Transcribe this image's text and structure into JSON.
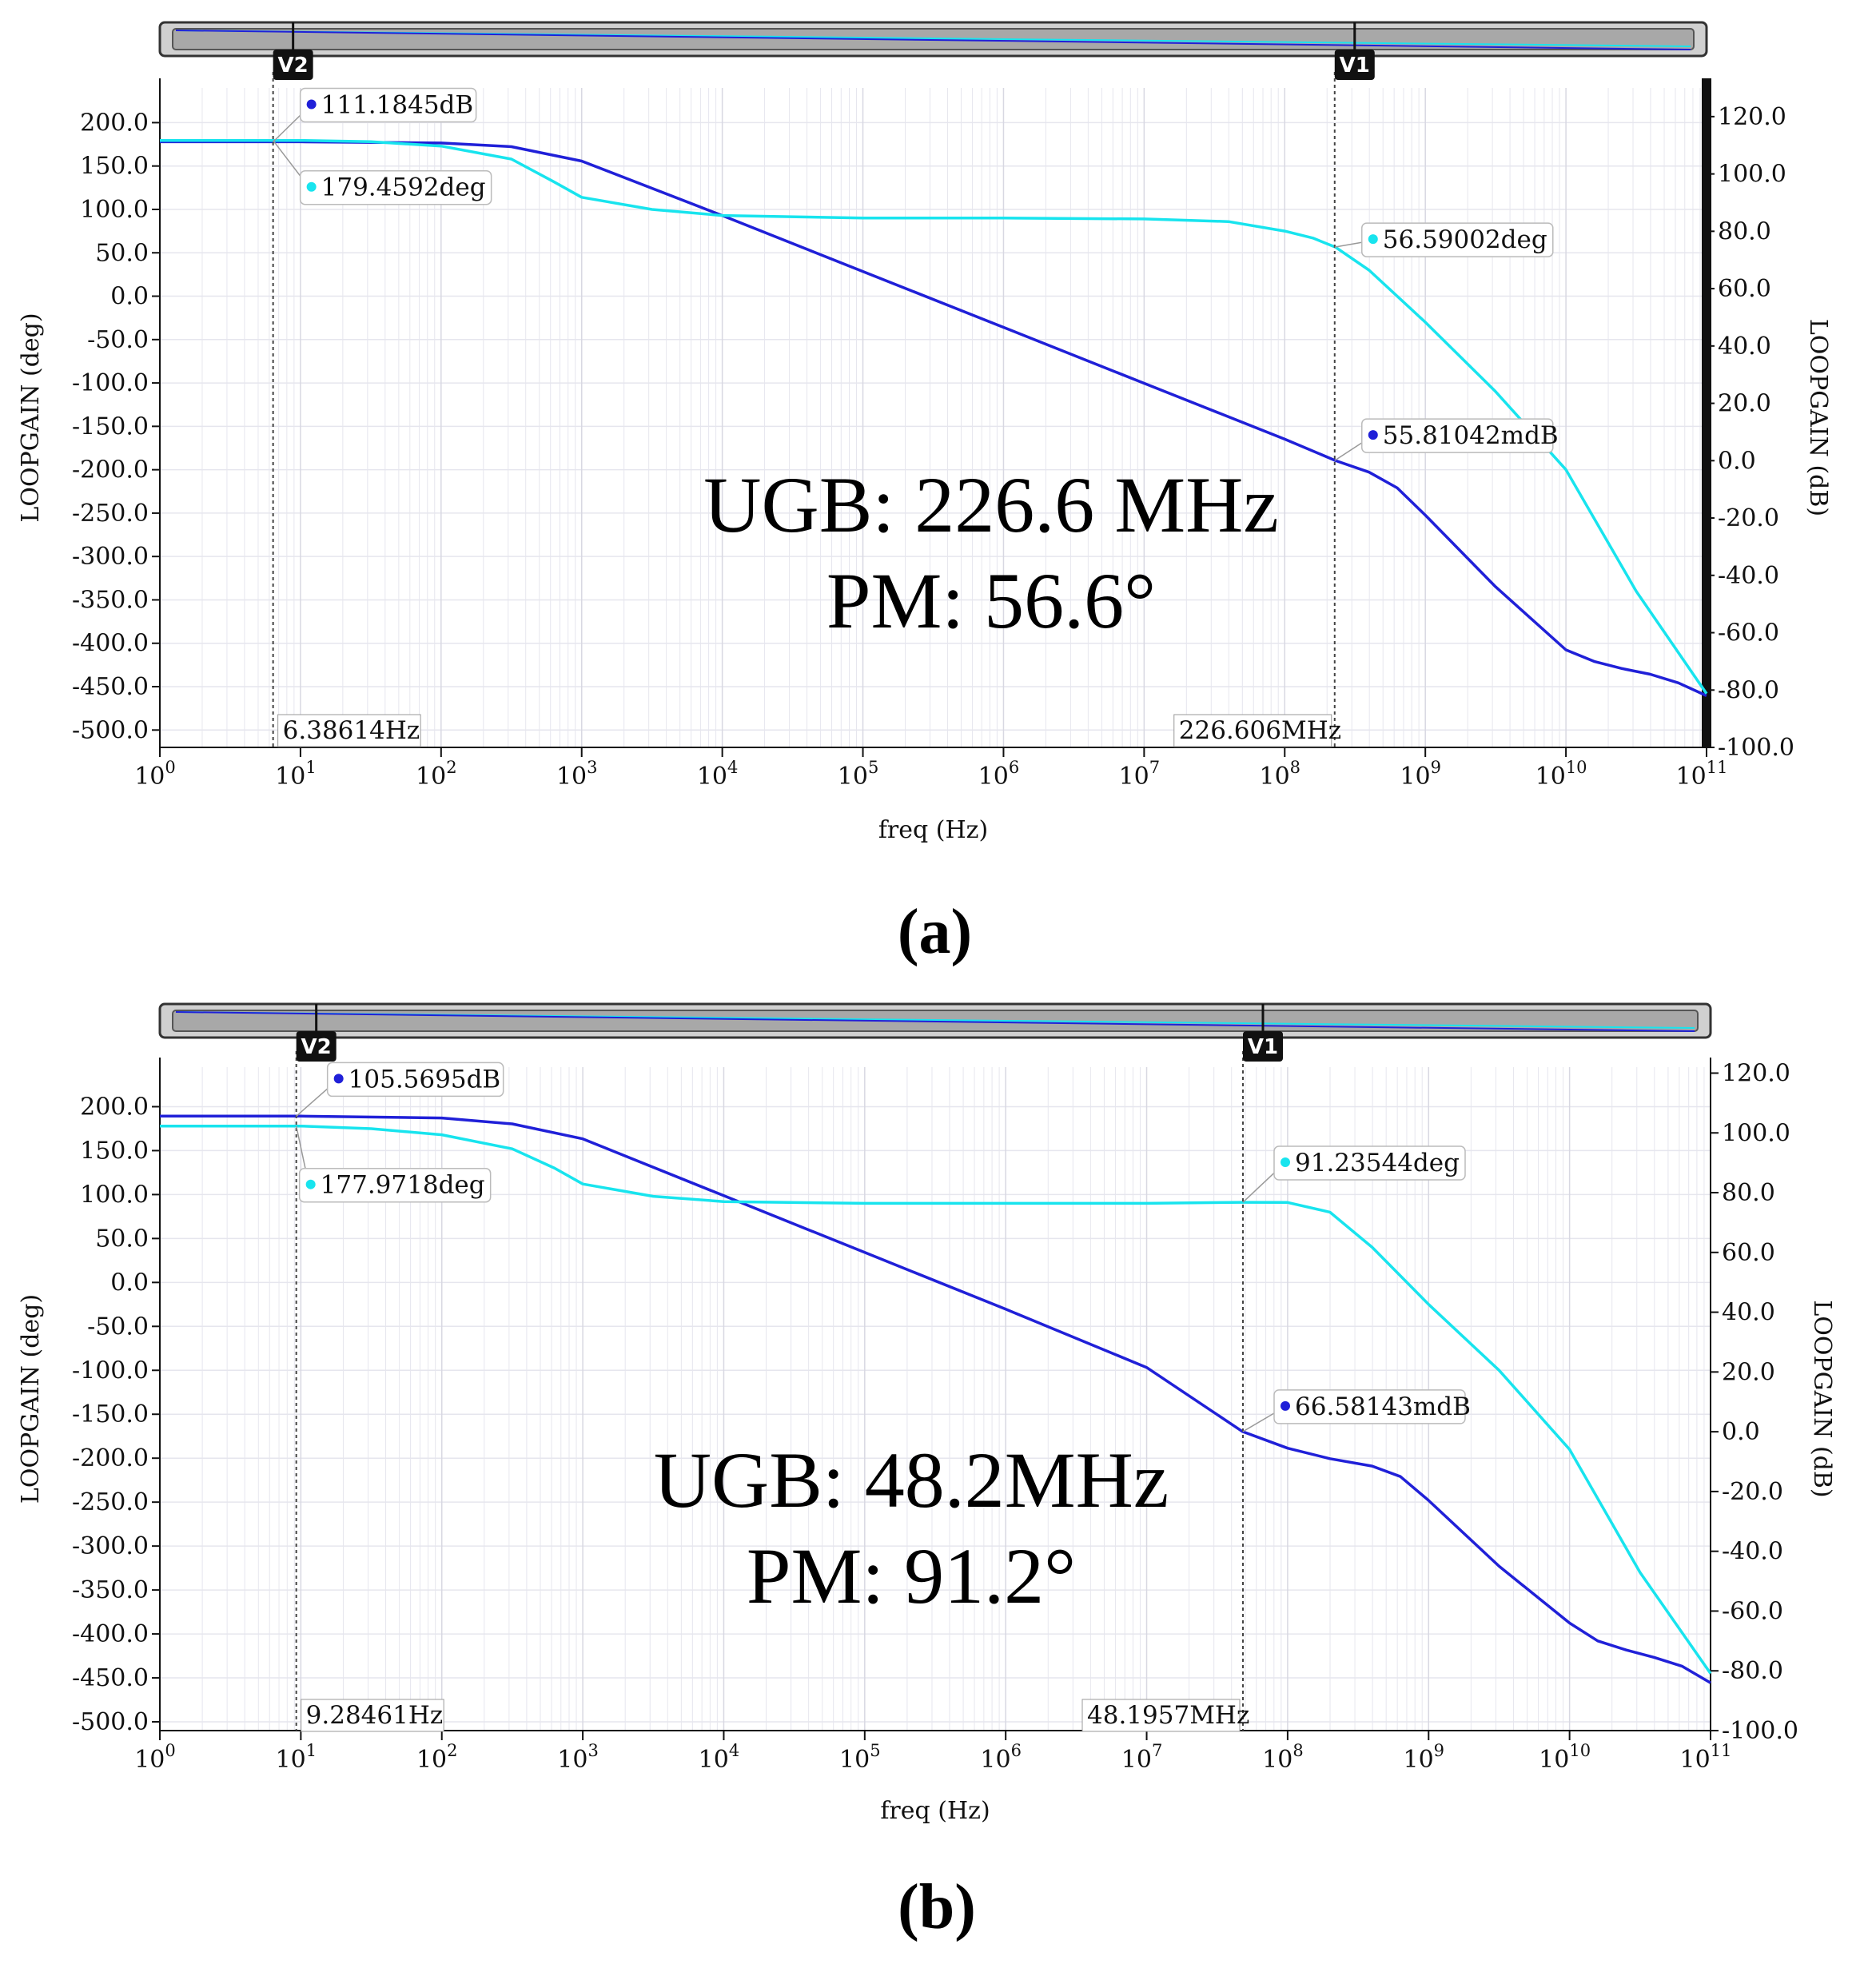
{
  "colors": {
    "gain": "#2020d8",
    "phase": "#18e4ee",
    "grid": "#e6e6ee",
    "axis": "#111111"
  },
  "chart_data": [
    {
      "type": "line",
      "panel_label": "(a)",
      "xlabel": "freq (Hz)",
      "ylabel_left": "LOOPGAIN (deg)",
      "ylabel_right": "LOOPGAIN (dB)",
      "xscale": "log",
      "xlim_exp": [
        0,
        11
      ],
      "x_tick_labels": [
        "10",
        "10",
        "10",
        "10",
        "10",
        "10",
        "10",
        "10",
        "10",
        "10",
        "10",
        "10"
      ],
      "x_tick_exps": [
        "0",
        "1",
        "2",
        "3",
        "4",
        "5",
        "6",
        "7",
        "8",
        "9",
        "10",
        "11"
      ],
      "ylim_left": [
        -520,
        240
      ],
      "y_left_ticks": [
        "200.0",
        "150.0",
        "100.0",
        "50.0",
        "0.0",
        "-50.0",
        "-100.0",
        "-150.0",
        "-200.0",
        "-250.0",
        "-300.0",
        "-350.0",
        "-400.0",
        "-450.0",
        "-500.0"
      ],
      "ylim_right": [
        -100,
        130
      ],
      "y_right_ticks": [
        "120.0",
        "100.0",
        "80.0",
        "60.0",
        "40.0",
        "20.0",
        "0.0",
        "-20.0",
        "-40.0",
        "-60.0",
        "-80.0",
        "-100.0"
      ],
      "series": [
        {
          "name": "LOOPGAIN (dB)",
          "axis": "right",
          "x_exp": [
            0,
            1,
            2,
            2.5,
            3,
            4,
            5,
            6,
            7,
            8,
            8.36,
            8.6,
            8.8,
            9,
            9.5,
            10,
            10.2,
            10.4,
            10.6,
            10.8,
            11
          ],
          "values": [
            111.2,
            111.2,
            110.8,
            109.5,
            104.5,
            85.5,
            66,
            46.5,
            27,
            7.5,
            0.06,
            -4,
            -9.5,
            -19,
            -44,
            -66,
            -70,
            -72.5,
            -74.5,
            -77.5,
            -82
          ]
        },
        {
          "name": "LOOPGAIN (deg)",
          "axis": "left",
          "x_exp": [
            0,
            1,
            1.5,
            2,
            2.5,
            2.8,
            3,
            3.5,
            4,
            5,
            6,
            7,
            7.6,
            8,
            8.2,
            8.36,
            8.6,
            9,
            9.5,
            10,
            10.5,
            11
          ],
          "values": [
            179.5,
            179.5,
            178,
            173,
            158,
            132,
            114,
            100,
            93,
            90,
            90,
            89,
            86,
            75,
            67,
            56.6,
            30,
            -30,
            -110,
            -200,
            -340,
            -458
          ]
        }
      ],
      "cursors": [
        {
          "name": "V2",
          "freq_label": "6.38614Hz",
          "x_exp": 0.8052
        },
        {
          "name": "V1",
          "freq_label": "226.606MHz",
          "x_exp": 8.3553
        }
      ],
      "markers": [
        {
          "label": "111.1845dB",
          "series": "gain",
          "x_exp": 0.8052,
          "value": 111.18
        },
        {
          "label": "179.4592deg",
          "series": "phase",
          "x_exp": 0.8052,
          "value": 179.46
        },
        {
          "label": "56.59002deg",
          "series": "phase",
          "x_exp": 8.3553,
          "value": 56.59
        },
        {
          "label": "55.81042mdB",
          "series": "gain",
          "x_exp": 8.3553,
          "value": 0.056
        }
      ],
      "annotation": [
        "UGB: 226.6 MHz",
        "PM: 56.6°"
      ]
    },
    {
      "type": "line",
      "panel_label": "(b)",
      "xlabel": "freq (Hz)",
      "ylabel_left": "LOOPGAIN (deg)",
      "ylabel_right": "LOOPGAIN (dB)",
      "xscale": "log",
      "xlim_exp": [
        0,
        11
      ],
      "x_tick_labels": [
        "10",
        "10",
        "10",
        "10",
        "10",
        "10",
        "10",
        "10",
        "10",
        "10",
        "10",
        "10"
      ],
      "x_tick_exps": [
        "0",
        "1",
        "2",
        "3",
        "4",
        "5",
        "6",
        "7",
        "8",
        "9",
        "10",
        "11"
      ],
      "ylim_left": [
        -510,
        245
      ],
      "y_left_ticks": [
        "200.0",
        "150.0",
        "100.0",
        "50.0",
        "0.0",
        "-50.0",
        "-100.0",
        "-150.0",
        "-200.0",
        "-250.0",
        "-300.0",
        "-350.0",
        "-400.0",
        "-450.0",
        "-500.0"
      ],
      "ylim_right": [
        -100,
        122
      ],
      "y_right_ticks": [
        "120.0",
        "100.0",
        "80.0",
        "60.0",
        "40.0",
        "20.0",
        "0.0",
        "-20.0",
        "-40.0",
        "-60.0",
        "-80.0",
        "-100.0"
      ],
      "series": [
        {
          "name": "LOOPGAIN (dB)",
          "axis": "right",
          "x_exp": [
            0,
            1,
            2,
            2.5,
            3,
            4,
            5,
            6,
            7,
            7.68,
            8,
            8.3,
            8.6,
            8.8,
            9,
            9.5,
            10,
            10.2,
            10.4,
            10.6,
            10.8,
            11
          ],
          "values": [
            105.6,
            105.6,
            105,
            103,
            98,
            79,
            60,
            41,
            21.5,
            0.07,
            -5.5,
            -9,
            -11.5,
            -15,
            -23,
            -45,
            -64,
            -70,
            -73,
            -75.5,
            -78.5,
            -84
          ]
        },
        {
          "name": "LOOPGAIN (deg)",
          "axis": "left",
          "x_exp": [
            0,
            1,
            1.5,
            2,
            2.5,
            2.8,
            3,
            3.5,
            4,
            5,
            6,
            7,
            7.68,
            8,
            8.3,
            8.6,
            9,
            9.5,
            10,
            10.5,
            11
          ],
          "values": [
            178,
            178,
            175,
            168,
            152,
            130,
            112,
            98,
            92,
            90,
            90,
            90,
            91.2,
            91,
            80,
            40,
            -25,
            -100,
            -190,
            -330,
            -445
          ]
        }
      ],
      "cursors": [
        {
          "name": "V2",
          "freq_label": "9.28461Hz",
          "x_exp": 0.9677
        },
        {
          "name": "V1",
          "freq_label": "48.1957MHz",
          "x_exp": 7.683
        }
      ],
      "markers": [
        {
          "label": "105.5695dB",
          "series": "gain",
          "x_exp": 0.9677,
          "value": 105.57
        },
        {
          "label": "177.9718deg",
          "series": "phase",
          "x_exp": 0.9677,
          "value": 177.97
        },
        {
          "label": "91.23544deg",
          "series": "phase",
          "x_exp": 7.683,
          "value": 91.24
        },
        {
          "label": "66.58143mdB",
          "series": "gain",
          "x_exp": 7.683,
          "value": 0.067
        }
      ],
      "annotation": [
        "UGB: 48.2MHz",
        "PM: 91.2°"
      ]
    }
  ]
}
